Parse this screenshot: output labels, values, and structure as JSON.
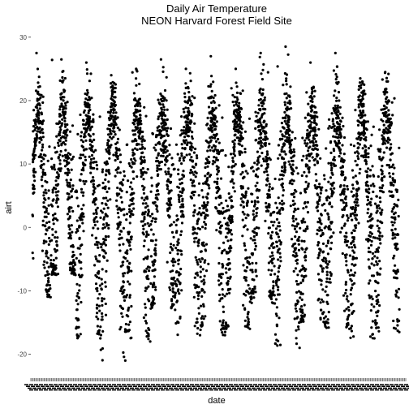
{
  "chart_data": {
    "type": "scatter",
    "title": "Daily Air Temperature",
    "subtitle": "NEON Harvard Forest Field Site",
    "xlabel": "date",
    "ylabel": "airt",
    "ylim": [
      -23,
      31
    ],
    "y_ticks": [
      -20,
      -10,
      0,
      10,
      20,
      30
    ],
    "x_tick_labels_overlapping": true,
    "grid": false,
    "point_color": "#000000",
    "series_shape": "seasonal daily temperature, roughly 15 annual cycles",
    "cycles": [
      {
        "cycle": 1,
        "peak": 27.5,
        "trough": -11.0
      },
      {
        "cycle": 2,
        "peak": 26.5,
        "trough": -7.5
      },
      {
        "cycle": 3,
        "peak": 26.0,
        "trough": -17.5
      },
      {
        "cycle": 4,
        "peak": 24.0,
        "trough": -21.0
      },
      {
        "cycle": 5,
        "peak": 25.0,
        "trough": -18.0
      },
      {
        "cycle": 6,
        "peak": 26.5,
        "trough": -13.0
      },
      {
        "cycle": 7,
        "peak": 25.0,
        "trough": -17.0
      },
      {
        "cycle": 8,
        "peak": 27.0,
        "trough": -17.0
      },
      {
        "cycle": 9,
        "peak": 25.0,
        "trough": -16.0
      },
      {
        "cycle": 10,
        "peak": 27.5,
        "trough": -12.0
      },
      {
        "cycle": 11,
        "peak": 28.5,
        "trough": -19.0
      },
      {
        "cycle": 12,
        "peak": 26.0,
        "trough": -15.0
      },
      {
        "cycle": 13,
        "peak": 27.5,
        "trough": -16.0
      },
      {
        "cycle": 14,
        "peak": 23.5,
        "trough": -17.5
      },
      {
        "cycle": 15,
        "peak": 24.5,
        "trough": -16.5
      }
    ]
  }
}
